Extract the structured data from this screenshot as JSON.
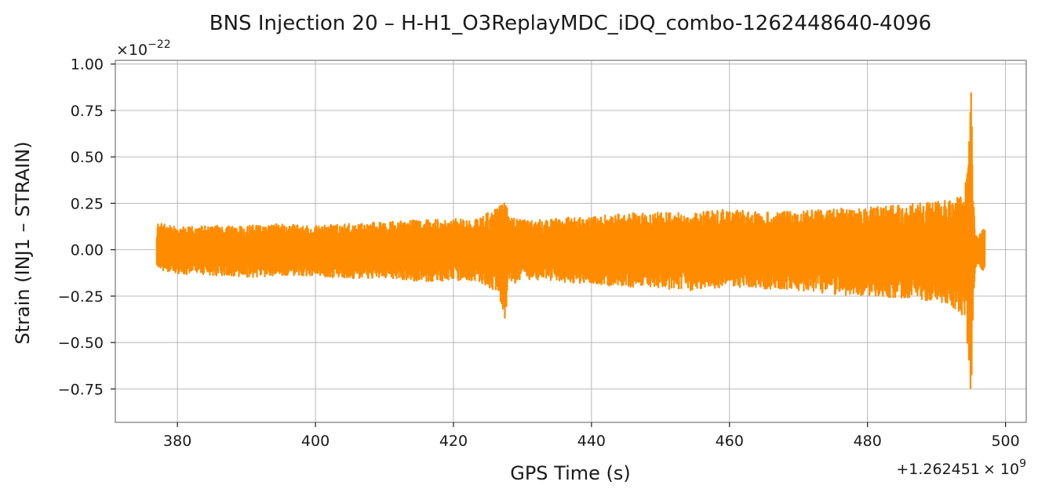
{
  "chart_data": {
    "type": "line",
    "title": "BNS Injection 20 – H-H1_O3ReplayMDC_iDQ_combo-1262448640-4096",
    "xlabel": "GPS Time (s)",
    "ylabel": "Strain (INJ1 – STRAIN)",
    "x_offset_label": "+1.262451",
    "x_offset_exponent_label": "× 10",
    "x_offset_exponent": "9",
    "y_scale_label": "×10",
    "y_scale_exponent": "−22",
    "xlim": [
      371,
      503
    ],
    "ylim": [
      -0.93,
      1.02
    ],
    "xticks": [
      380,
      400,
      420,
      440,
      460,
      480,
      500
    ],
    "xtick_labels": [
      "380",
      "400",
      "420",
      "440",
      "460",
      "480",
      "500"
    ],
    "yticks": [
      -0.75,
      -0.5,
      -0.25,
      0.0,
      0.25,
      0.5,
      0.75,
      1.0
    ],
    "ytick_labels": [
      "−0.75",
      "−0.50",
      "−0.25",
      "0.00",
      "0.25",
      "0.50",
      "0.75",
      "1.00"
    ],
    "grid": true,
    "color": "#ff8c00",
    "series": [
      {
        "x": [
          377.0,
          377.3,
          380,
          385,
          390,
          395,
          400,
          405,
          410,
          415,
          420,
          422,
          424,
          426,
          427.0,
          427.5,
          428,
          430,
          435,
          440,
          445,
          450,
          455,
          460,
          465,
          470,
          475,
          480,
          485,
          490,
          492,
          494,
          494.6,
          495.0,
          495.3,
          495.6,
          496,
          497.0
        ],
        "upper": [
          0.13,
          0.15,
          0.12,
          0.13,
          0.13,
          0.14,
          0.13,
          0.14,
          0.15,
          0.16,
          0.17,
          0.16,
          0.18,
          0.22,
          0.26,
          0.28,
          0.18,
          0.16,
          0.17,
          0.18,
          0.2,
          0.2,
          0.2,
          0.22,
          0.2,
          0.21,
          0.22,
          0.23,
          0.24,
          0.26,
          0.28,
          0.32,
          0.45,
          0.93,
          0.38,
          0.1,
          0.08,
          0.12
        ],
        "lower": [
          -0.1,
          -0.11,
          -0.13,
          -0.14,
          -0.15,
          -0.14,
          -0.14,
          -0.16,
          -0.15,
          -0.17,
          -0.17,
          -0.16,
          -0.18,
          -0.22,
          -0.3,
          -0.39,
          -0.2,
          -0.16,
          -0.17,
          -0.19,
          -0.2,
          -0.21,
          -0.22,
          -0.2,
          -0.21,
          -0.22,
          -0.24,
          -0.25,
          -0.26,
          -0.28,
          -0.3,
          -0.36,
          -0.55,
          -0.85,
          -0.35,
          -0.1,
          -0.09,
          -0.12
        ]
      }
    ]
  }
}
